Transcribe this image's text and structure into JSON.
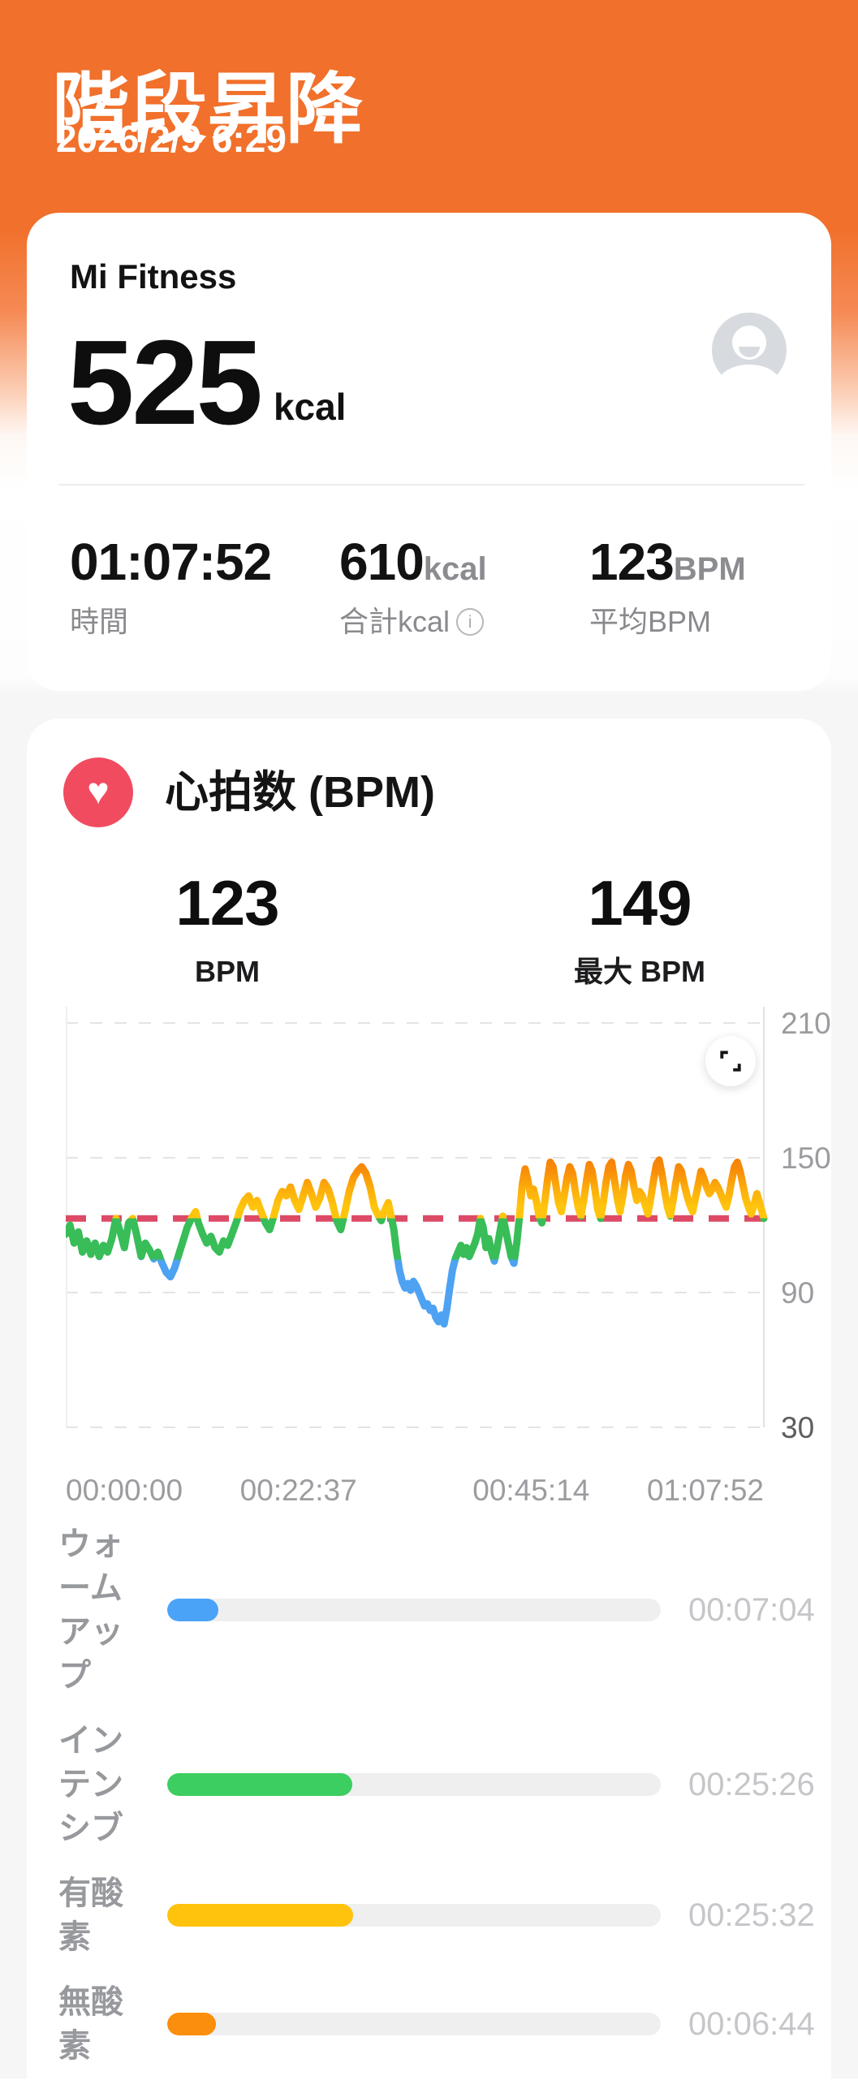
{
  "header": {
    "title": "階段昇降",
    "datetime": "2026/2/9 6:29"
  },
  "summary_card": {
    "source_app": "Mi Fitness",
    "calories_value": "525",
    "calories_unit": "kcal",
    "stats": [
      {
        "value": "01:07:52",
        "unit": "",
        "label": "時間"
      },
      {
        "value": "610",
        "unit": "kcal",
        "label": "合計kcal",
        "info_icon": "i"
      },
      {
        "value": "123",
        "unit": "BPM",
        "label": "平均BPM"
      }
    ]
  },
  "heart_card": {
    "icon": "heart-icon",
    "icon_bg": "#F14B60",
    "heart_glyph": "♥",
    "title": "心拍数 (BPM)",
    "metrics": [
      {
        "value": "123",
        "label": "BPM"
      },
      {
        "value": "149",
        "label": "最大 BPM"
      }
    ]
  },
  "chart_data": {
    "type": "line",
    "title": "心拍数 (BPM)",
    "x_unit": "elapsed-time",
    "duration_seconds": 4072,
    "xtick_labels": [
      "00:00:00",
      "00:22:37",
      "00:45:14",
      "01:07:52"
    ],
    "ylim": [
      30,
      210
    ],
    "yticks": [
      210,
      150,
      90,
      30
    ],
    "grid": "dashed-horizontal",
    "legend": "none",
    "average_bpm": 123,
    "max_bpm": 149,
    "average_line": {
      "value": 123,
      "color": "#DD4A66",
      "style": "dashed"
    },
    "gradient_stops": [
      {
        "bpm": 153,
        "color": "#F57A08"
      },
      {
        "bpm": 144,
        "color": "#F88E09"
      },
      {
        "bpm": 136,
        "color": "#FCAE0B"
      },
      {
        "bpm": 128,
        "color": "#FFC40D"
      },
      {
        "bpm": 123.3,
        "color": "#FFC40D"
      },
      {
        "bpm": 122.8,
        "color": "#38BD58"
      },
      {
        "bpm": 105.2,
        "color": "#38BD58"
      },
      {
        "bpm": 104.0,
        "color": "#4DA2F2"
      },
      {
        "bpm": 76,
        "color": "#4DA2F2"
      }
    ],
    "series": [
      {
        "name": "heart_rate_bpm",
        "points": [
          [
            0,
            116
          ],
          [
            0.006,
            120
          ],
          [
            0.012,
            112
          ],
          [
            0.018,
            117
          ],
          [
            0.024,
            108
          ],
          [
            0.03,
            113
          ],
          [
            0.036,
            107
          ],
          [
            0.042,
            112
          ],
          [
            0.048,
            106
          ],
          [
            0.054,
            111
          ],
          [
            0.06,
            108
          ],
          [
            0.066,
            114
          ],
          [
            0.072,
            123
          ],
          [
            0.078,
            117
          ],
          [
            0.084,
            110
          ],
          [
            0.09,
            121
          ],
          [
            0.096,
            123
          ],
          [
            0.102,
            115
          ],
          [
            0.108,
            106
          ],
          [
            0.114,
            112
          ],
          [
            0.12,
            109
          ],
          [
            0.126,
            105
          ],
          [
            0.132,
            108
          ],
          [
            0.138,
            103
          ],
          [
            0.144,
            99
          ],
          [
            0.15,
            97
          ],
          [
            0.156,
            101
          ],
          [
            0.162,
            107
          ],
          [
            0.168,
            113
          ],
          [
            0.174,
            119
          ],
          [
            0.18,
            123
          ],
          [
            0.186,
            126
          ],
          [
            0.19,
            121
          ],
          [
            0.196,
            116
          ],
          [
            0.202,
            112
          ],
          [
            0.208,
            115
          ],
          [
            0.214,
            110
          ],
          [
            0.22,
            108
          ],
          [
            0.226,
            113
          ],
          [
            0.232,
            111
          ],
          [
            0.238,
            116
          ],
          [
            0.244,
            121
          ],
          [
            0.25,
            127
          ],
          [
            0.256,
            131
          ],
          [
            0.262,
            133
          ],
          [
            0.268,
            128
          ],
          [
            0.274,
            131
          ],
          [
            0.28,
            126
          ],
          [
            0.286,
            121
          ],
          [
            0.292,
            118
          ],
          [
            0.298,
            124
          ],
          [
            0.304,
            131
          ],
          [
            0.31,
            135
          ],
          [
            0.316,
            133
          ],
          [
            0.322,
            137
          ],
          [
            0.328,
            131
          ],
          [
            0.334,
            127
          ],
          [
            0.34,
            133
          ],
          [
            0.346,
            139
          ],
          [
            0.352,
            134
          ],
          [
            0.358,
            128
          ],
          [
            0.364,
            132
          ],
          [
            0.37,
            139
          ],
          [
            0.376,
            136
          ],
          [
            0.382,
            130
          ],
          [
            0.388,
            122
          ],
          [
            0.394,
            118
          ],
          [
            0.4,
            126
          ],
          [
            0.406,
            135
          ],
          [
            0.412,
            141
          ],
          [
            0.418,
            144
          ],
          [
            0.424,
            146
          ],
          [
            0.43,
            143
          ],
          [
            0.436,
            137
          ],
          [
            0.442,
            128
          ],
          [
            0.448,
            124
          ],
          [
            0.452,
            122
          ],
          [
            0.456,
            126
          ],
          [
            0.462,
            130
          ],
          [
            0.466,
            124
          ],
          [
            0.47,
            118
          ],
          [
            0.474,
            108
          ],
          [
            0.478,
            100
          ],
          [
            0.482,
            95
          ],
          [
            0.486,
            92
          ],
          [
            0.49,
            94
          ],
          [
            0.494,
            91
          ],
          [
            0.498,
            95
          ],
          [
            0.502,
            93
          ],
          [
            0.506,
            90
          ],
          [
            0.51,
            87
          ],
          [
            0.514,
            84
          ],
          [
            0.518,
            85
          ],
          [
            0.522,
            82
          ],
          [
            0.526,
            83
          ],
          [
            0.53,
            79
          ],
          [
            0.534,
            77
          ],
          [
            0.538,
            80
          ],
          [
            0.542,
            76
          ],
          [
            0.546,
            83
          ],
          [
            0.55,
            92
          ],
          [
            0.554,
            100
          ],
          [
            0.558,
            105
          ],
          [
            0.562,
            108
          ],
          [
            0.566,
            111
          ],
          [
            0.57,
            107
          ],
          [
            0.574,
            110
          ],
          [
            0.578,
            106
          ],
          [
            0.582,
            109
          ],
          [
            0.586,
            112
          ],
          [
            0.59,
            116
          ],
          [
            0.594,
            123
          ],
          [
            0.598,
            119
          ],
          [
            0.602,
            110
          ],
          [
            0.606,
            114
          ],
          [
            0.61,
            108
          ],
          [
            0.614,
            104
          ],
          [
            0.618,
            110
          ],
          [
            0.622,
            117
          ],
          [
            0.626,
            124
          ],
          [
            0.63,
            118
          ],
          [
            0.634,
            112
          ],
          [
            0.638,
            106
          ],
          [
            0.642,
            103
          ],
          [
            0.646,
            112
          ],
          [
            0.65,
            124
          ],
          [
            0.654,
            138
          ],
          [
            0.658,
            145
          ],
          [
            0.662,
            140
          ],
          [
            0.666,
            133
          ],
          [
            0.67,
            136
          ],
          [
            0.674,
            131
          ],
          [
            0.678,
            124
          ],
          [
            0.682,
            121
          ],
          [
            0.686,
            130
          ],
          [
            0.69,
            140
          ],
          [
            0.694,
            148
          ],
          [
            0.698,
            146
          ],
          [
            0.702,
            138
          ],
          [
            0.706,
            130
          ],
          [
            0.71,
            126
          ],
          [
            0.714,
            133
          ],
          [
            0.718,
            141
          ],
          [
            0.722,
            146
          ],
          [
            0.726,
            143
          ],
          [
            0.73,
            135
          ],
          [
            0.734,
            128
          ],
          [
            0.738,
            124
          ],
          [
            0.742,
            131
          ],
          [
            0.746,
            140
          ],
          [
            0.75,
            147
          ],
          [
            0.754,
            144
          ],
          [
            0.758,
            136
          ],
          [
            0.762,
            127
          ],
          [
            0.766,
            123
          ],
          [
            0.77,
            130
          ],
          [
            0.774,
            139
          ],
          [
            0.778,
            146
          ],
          [
            0.782,
            148
          ],
          [
            0.786,
            140
          ],
          [
            0.79,
            132
          ],
          [
            0.794,
            126
          ],
          [
            0.798,
            133
          ],
          [
            0.802,
            142
          ],
          [
            0.806,
            147
          ],
          [
            0.81,
            144
          ],
          [
            0.814,
            137
          ],
          [
            0.818,
            131
          ],
          [
            0.822,
            135
          ],
          [
            0.826,
            133
          ],
          [
            0.83,
            129
          ],
          [
            0.834,
            125
          ],
          [
            0.838,
            132
          ],
          [
            0.842,
            140
          ],
          [
            0.846,
            147
          ],
          [
            0.85,
            149
          ],
          [
            0.854,
            143
          ],
          [
            0.858,
            135
          ],
          [
            0.862,
            128
          ],
          [
            0.866,
            124
          ],
          [
            0.87,
            131
          ],
          [
            0.874,
            139
          ],
          [
            0.878,
            146
          ],
          [
            0.882,
            144
          ],
          [
            0.886,
            138
          ],
          [
            0.89,
            133
          ],
          [
            0.894,
            129
          ],
          [
            0.898,
            126
          ],
          [
            0.902,
            132
          ],
          [
            0.906,
            138
          ],
          [
            0.91,
            144
          ],
          [
            0.914,
            141
          ],
          [
            0.918,
            137
          ],
          [
            0.922,
            134
          ],
          [
            0.926,
            136
          ],
          [
            0.93,
            139
          ],
          [
            0.934,
            137
          ],
          [
            0.938,
            134
          ],
          [
            0.942,
            131
          ],
          [
            0.946,
            128
          ],
          [
            0.95,
            133
          ],
          [
            0.954,
            140
          ],
          [
            0.958,
            146
          ],
          [
            0.962,
            148
          ],
          [
            0.966,
            144
          ],
          [
            0.97,
            138
          ],
          [
            0.974,
            132
          ],
          [
            0.978,
            128
          ],
          [
            0.982,
            125
          ],
          [
            0.986,
            129
          ],
          [
            0.99,
            134
          ],
          [
            0.994,
            130
          ],
          [
            1,
            123
          ]
        ]
      }
    ]
  },
  "zones": {
    "track_color": "#EFEFF0",
    "rows": [
      {
        "label": "ウォームアップ",
        "label_lines": [
          "ウォ",
          "ーム",
          "アッ",
          "プ"
        ],
        "time": "00:07:04",
        "color": "#4AA3F7"
      },
      {
        "label": "インテンシブ",
        "label_lines": [
          "イン",
          "テン",
          "シブ"
        ],
        "time": "00:25:26",
        "color": "#3CCE60"
      },
      {
        "label": "有酸素",
        "label_lines": [
          "有酸",
          "素"
        ],
        "time": "00:25:32",
        "color": "#FFC30D"
      },
      {
        "label": "無酸素",
        "label_lines": [
          "無酸",
          "素"
        ],
        "time": "00:06:44",
        "color": "#FB8E0C"
      }
    ]
  }
}
